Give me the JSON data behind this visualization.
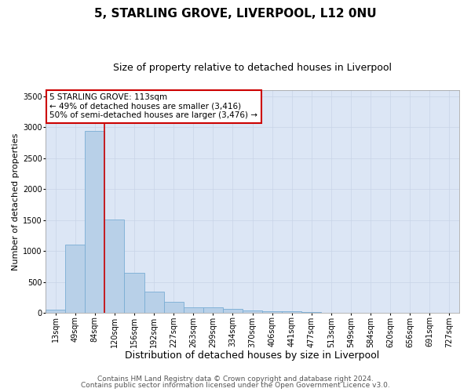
{
  "title1": "5, STARLING GROVE, LIVERPOOL, L12 0NU",
  "title2": "Size of property relative to detached houses in Liverpool",
  "xlabel": "Distribution of detached houses by size in Liverpool",
  "ylabel": "Number of detached properties",
  "categories": [
    "13sqm",
    "49sqm",
    "84sqm",
    "120sqm",
    "156sqm",
    "192sqm",
    "227sqm",
    "263sqm",
    "299sqm",
    "334sqm",
    "370sqm",
    "406sqm",
    "441sqm",
    "477sqm",
    "513sqm",
    "549sqm",
    "584sqm",
    "620sqm",
    "656sqm",
    "691sqm",
    "727sqm"
  ],
  "values": [
    50,
    1105,
    2940,
    1510,
    645,
    340,
    185,
    90,
    90,
    60,
    35,
    25,
    25,
    18,
    0,
    0,
    0,
    0,
    0,
    0,
    0
  ],
  "bar_color": "#b8d0e8",
  "bar_edge_color": "#7aadd4",
  "vline_pos": 2.5,
  "vline_color": "#cc0000",
  "annotation_text": "5 STARLING GROVE: 113sqm\n← 49% of detached houses are smaller (3,416)\n50% of semi-detached houses are larger (3,476) →",
  "annotation_box_color": "#ffffff",
  "annotation_box_edge": "#cc0000",
  "ylim": [
    0,
    3600
  ],
  "yticks": [
    0,
    500,
    1000,
    1500,
    2000,
    2500,
    3000,
    3500
  ],
  "background_color": "#dce6f5",
  "footer1": "Contains HM Land Registry data © Crown copyright and database right 2024.",
  "footer2": "Contains public sector information licensed under the Open Government Licence v3.0.",
  "title1_fontsize": 11,
  "title2_fontsize": 9,
  "xlabel_fontsize": 9,
  "ylabel_fontsize": 8,
  "tick_fontsize": 7,
  "annotation_fontsize": 7.5,
  "footer_fontsize": 6.5
}
